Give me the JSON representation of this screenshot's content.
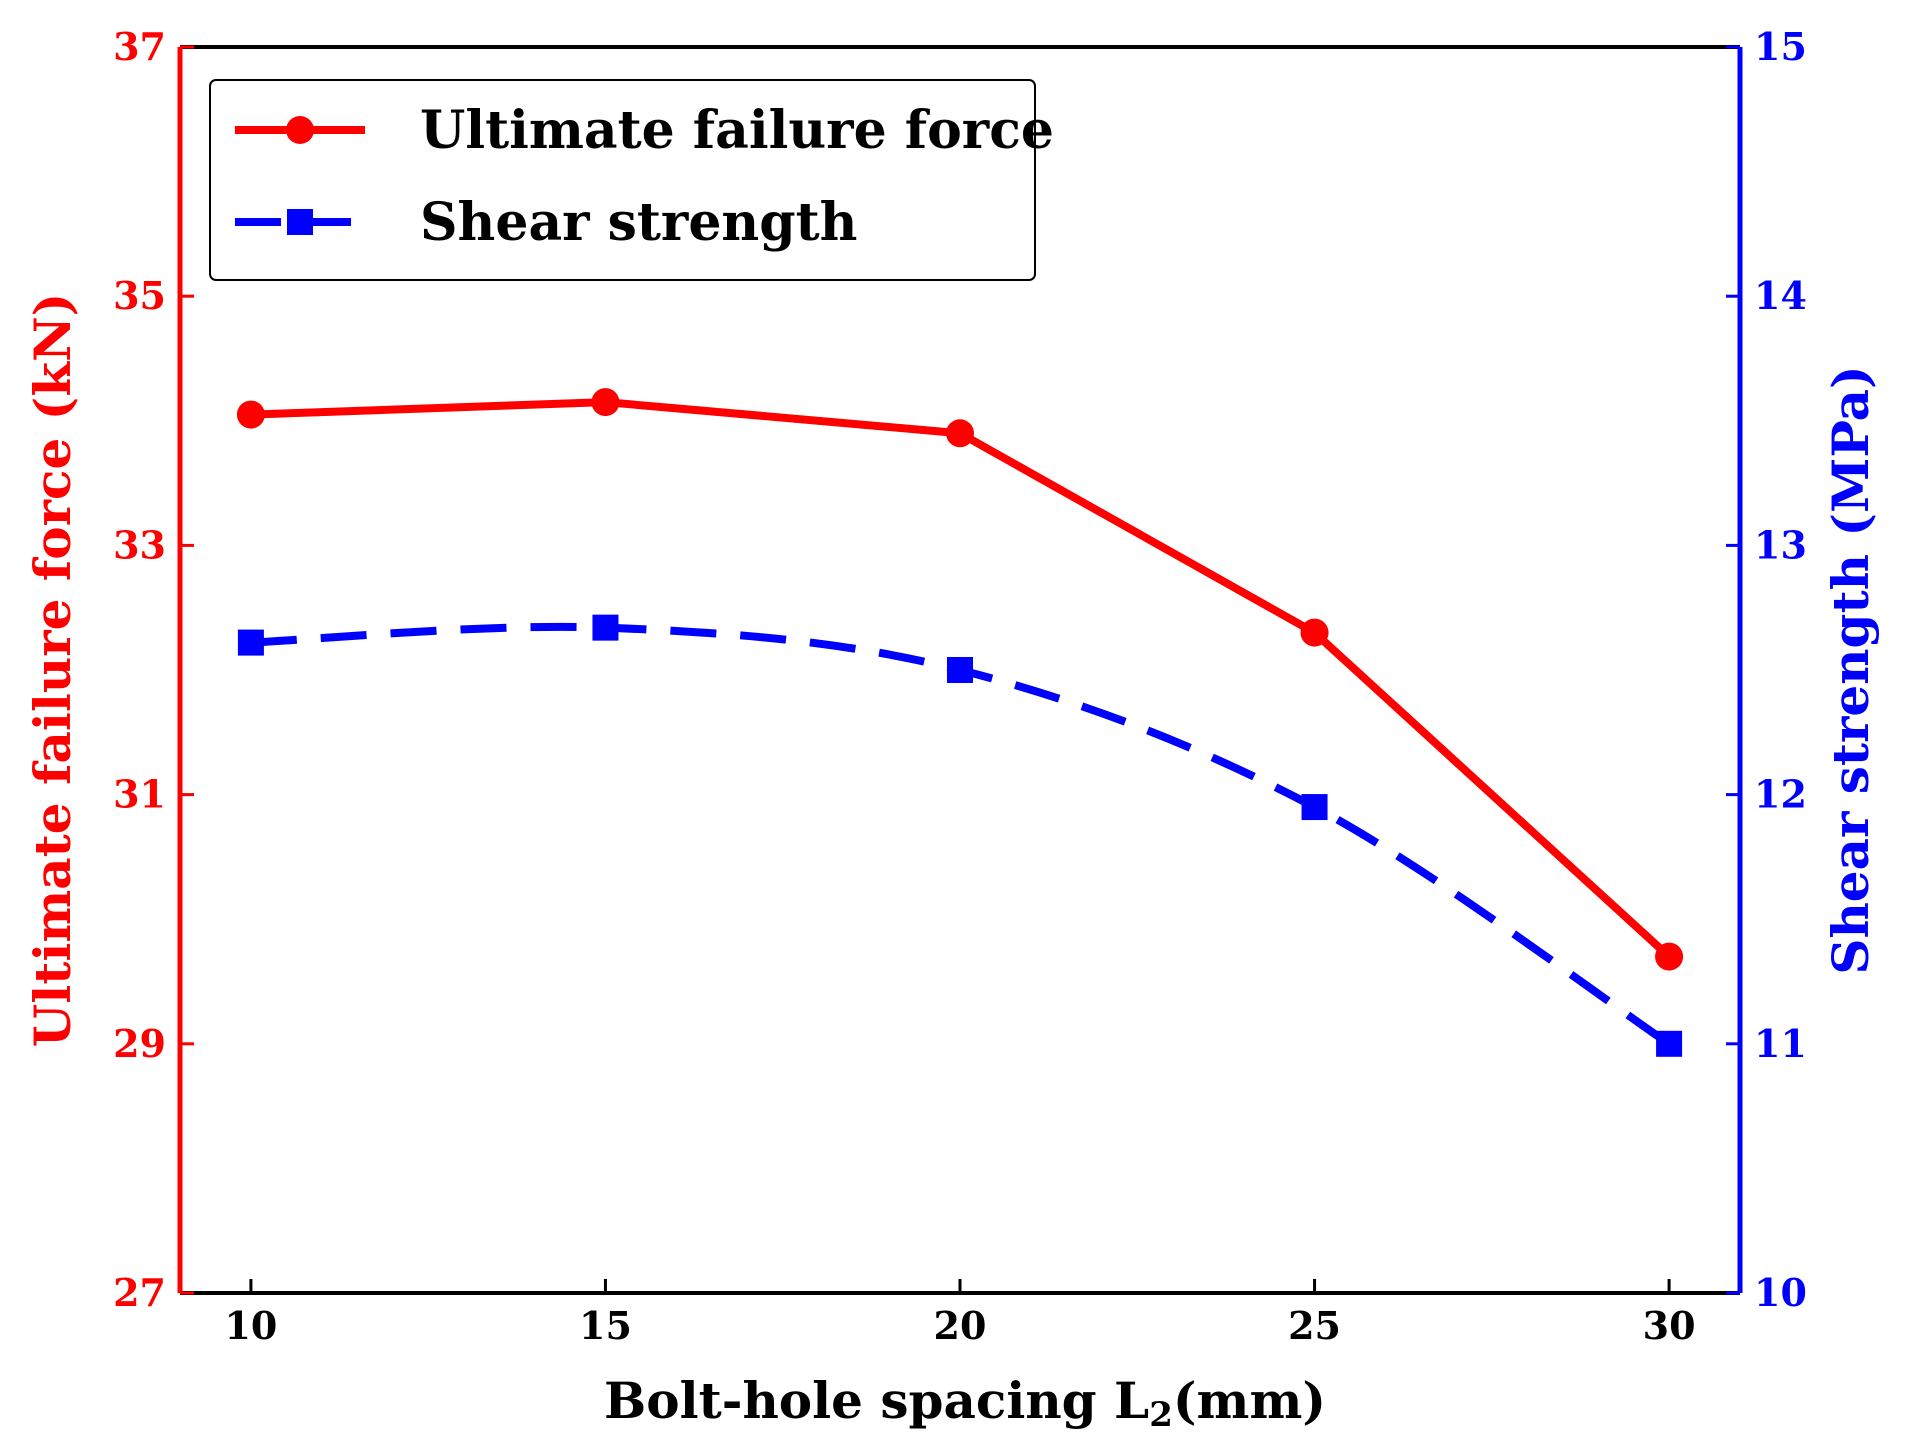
{
  "chart_data": {
    "type": "line",
    "x": [
      10,
      15,
      20,
      25,
      30
    ],
    "xlim": [
      9,
      31
    ],
    "xticks": [
      10,
      15,
      20,
      25,
      30
    ],
    "xlabel": "Bolt-hole spacing L",
    "xlabel_subscript": "2",
    "xlabel_suffix": "(mm)",
    "y_left": {
      "label": "Ultimate failure force (kN)",
      "lim": [
        27,
        37
      ],
      "ticks": [
        27,
        29,
        31,
        33,
        35,
        37
      ],
      "color": "#ff0000"
    },
    "y_right": {
      "label": "Shear strength (MPa)",
      "lim": [
        10,
        15
      ],
      "ticks": [
        10,
        11,
        12,
        13,
        14,
        15
      ],
      "color": "#0000ff"
    },
    "series": [
      {
        "name": "Ultimate failure force",
        "axis": "left",
        "values": [
          34.05,
          34.15,
          33.9,
          32.3,
          29.7
        ],
        "color": "#ff0000",
        "line_style": "solid",
        "marker": "circle"
      },
      {
        "name": "Shear strength",
        "axis": "right",
        "values": [
          12.61,
          12.67,
          12.5,
          11.95,
          11.0
        ],
        "color": "#0000ff",
        "line_style": "dashed",
        "marker": "square"
      }
    ],
    "legend_position": "top-left",
    "grid": false
  }
}
